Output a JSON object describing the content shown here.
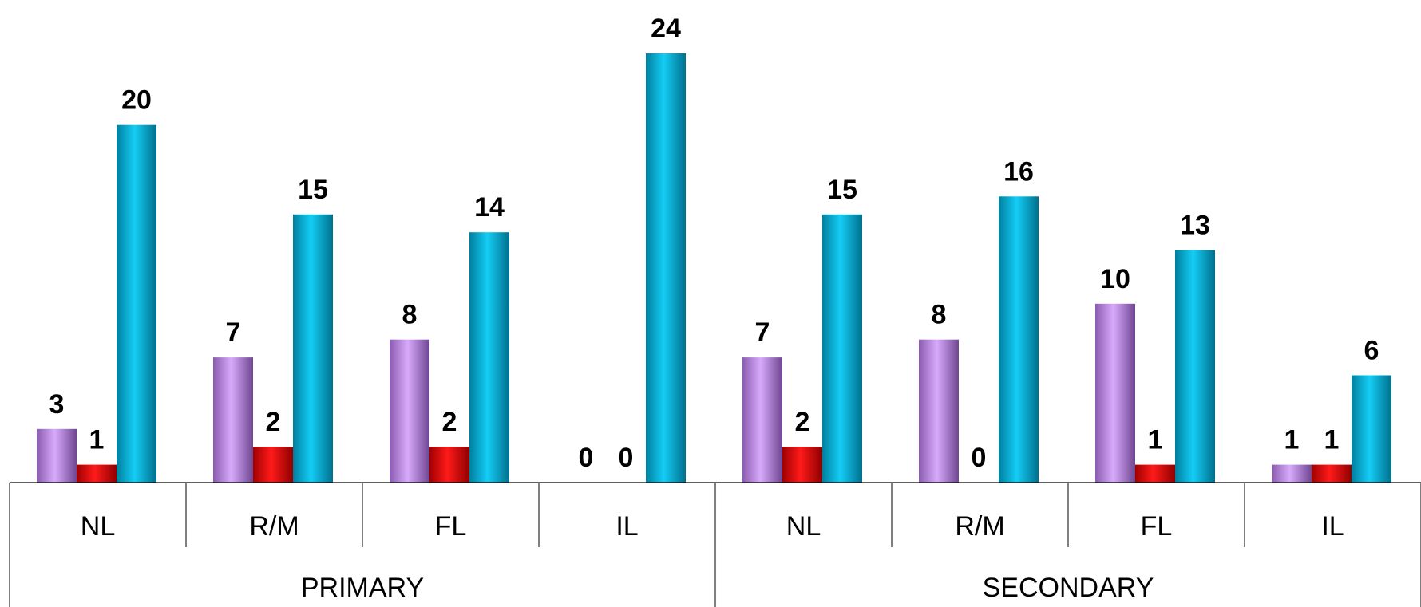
{
  "chart_data": {
    "type": "bar",
    "subcategories": [
      "NL",
      "R/M",
      "FL",
      "IL"
    ],
    "groups": [
      "PRIMARY",
      "SECONDARY"
    ],
    "series": [
      {
        "color": "#c38cf0",
        "values": [
          3,
          7,
          8,
          0,
          7,
          8,
          10,
          1
        ]
      },
      {
        "color": "#e30000",
        "values": [
          1,
          2,
          2,
          0,
          2,
          0,
          1,
          1
        ]
      },
      {
        "color": "#00b4dc",
        "values": [
          20,
          15,
          14,
          24,
          15,
          16,
          13,
          6
        ]
      }
    ],
    "ylim": [
      0,
      24
    ],
    "grid": false,
    "legend": "none"
  }
}
